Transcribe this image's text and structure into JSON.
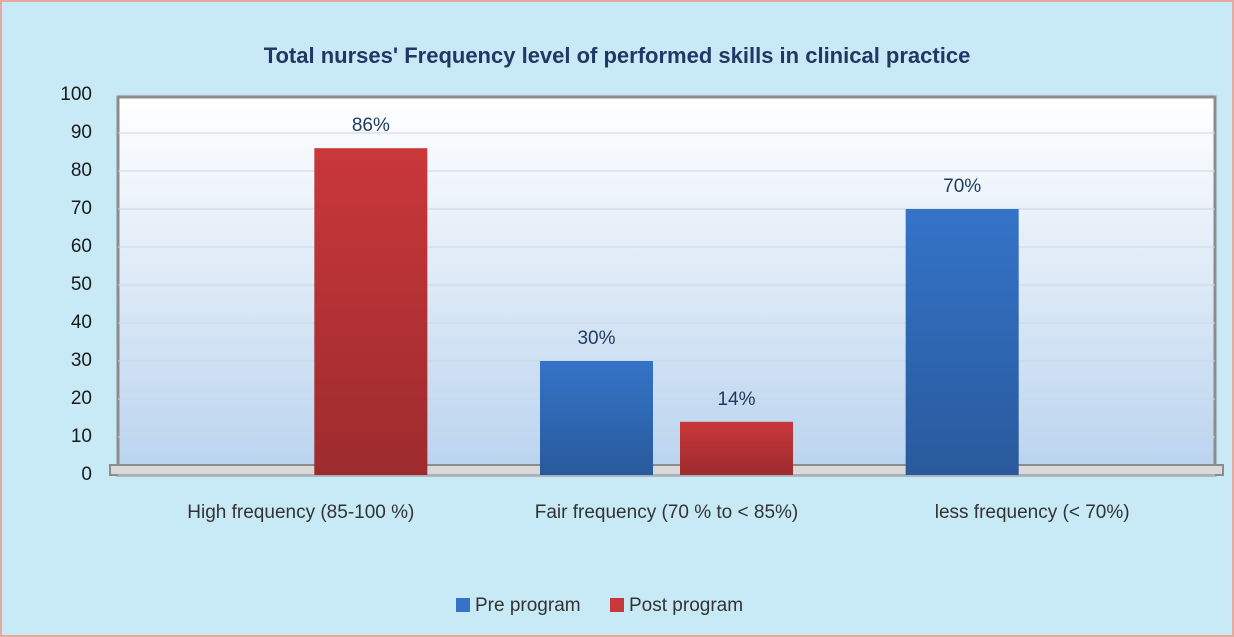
{
  "chart_data": {
    "type": "bar",
    "title": "Total nurses' Frequency level of performed skills in clinical practice",
    "categories": [
      "High frequency (85-100 %)",
      "Fair frequency (70 % to < 85%)",
      "less frequency (< 70%)"
    ],
    "series": [
      {
        "name": "Pre program",
        "color": "#3473c8",
        "values": [
          null,
          30,
          70
        ],
        "value_labels": [
          null,
          "30%",
          "70%"
        ]
      },
      {
        "name": "Post program",
        "color": "#c9373a",
        "values": [
          86,
          14,
          null
        ],
        "value_labels": [
          "86%",
          "14%",
          null
        ]
      }
    ],
    "ylim": [
      0,
      100
    ],
    "yticks": [
      0,
      10,
      20,
      30,
      40,
      50,
      60,
      70,
      80,
      90,
      100
    ],
    "grid": true,
    "legend": "bottom"
  }
}
